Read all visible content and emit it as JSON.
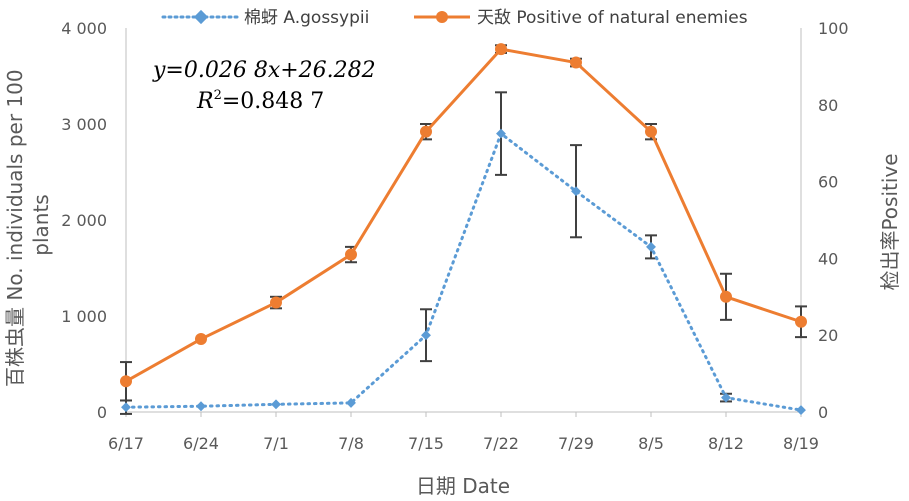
{
  "chart_data": {
    "type": "line",
    "x_label": "日期 Date",
    "categories": [
      "6/17",
      "6/24",
      "7/1",
      "7/8",
      "7/15",
      "7/22",
      "7/29",
      "8/5",
      "8/12",
      "8/19"
    ],
    "y_left": {
      "label_line1": "百株虫量 No. individuals per 100",
      "label_line2": "plants",
      "range": [
        0,
        4000
      ],
      "ticks": [
        0,
        1000,
        2000,
        3000,
        4000
      ],
      "tick_labels": [
        "0",
        "1 000",
        "2 000",
        "3 000",
        "4 000"
      ]
    },
    "y_right": {
      "label": "检出率Positive",
      "range": [
        0,
        100
      ],
      "ticks": [
        0,
        20,
        40,
        60,
        80,
        100
      ],
      "tick_labels": [
        "0",
        "20",
        "40",
        "60",
        "80",
        "100"
      ]
    },
    "series": [
      {
        "name": "棉蚜 A.gossypii",
        "axis": "left",
        "color": "#5b9bd5",
        "line_style": "dotted",
        "marker": "diamond",
        "values": [
          50,
          60,
          80,
          95,
          800,
          2900,
          2300,
          1720,
          150,
          20
        ],
        "error": [
          70,
          0,
          0,
          0,
          270,
          430,
          480,
          120,
          40,
          0
        ]
      },
      {
        "name": "天敌 Positive of natural enemies",
        "axis": "right",
        "color": "#ed7d31",
        "line_style": "solid",
        "marker": "circle",
        "values": [
          8,
          19,
          28.5,
          41,
          73,
          94.5,
          91,
          73,
          30,
          23.5
        ],
        "error": [
          5,
          0,
          1.5,
          2,
          2,
          1,
          1,
          2,
          6,
          4
        ]
      }
    ],
    "annotation": {
      "equation": "y=0.026 8x+26.282",
      "r2_label": "R",
      "r2_sup": "2",
      "r2_value": "=0.848 7"
    },
    "legend_position": "top",
    "grid": false
  }
}
